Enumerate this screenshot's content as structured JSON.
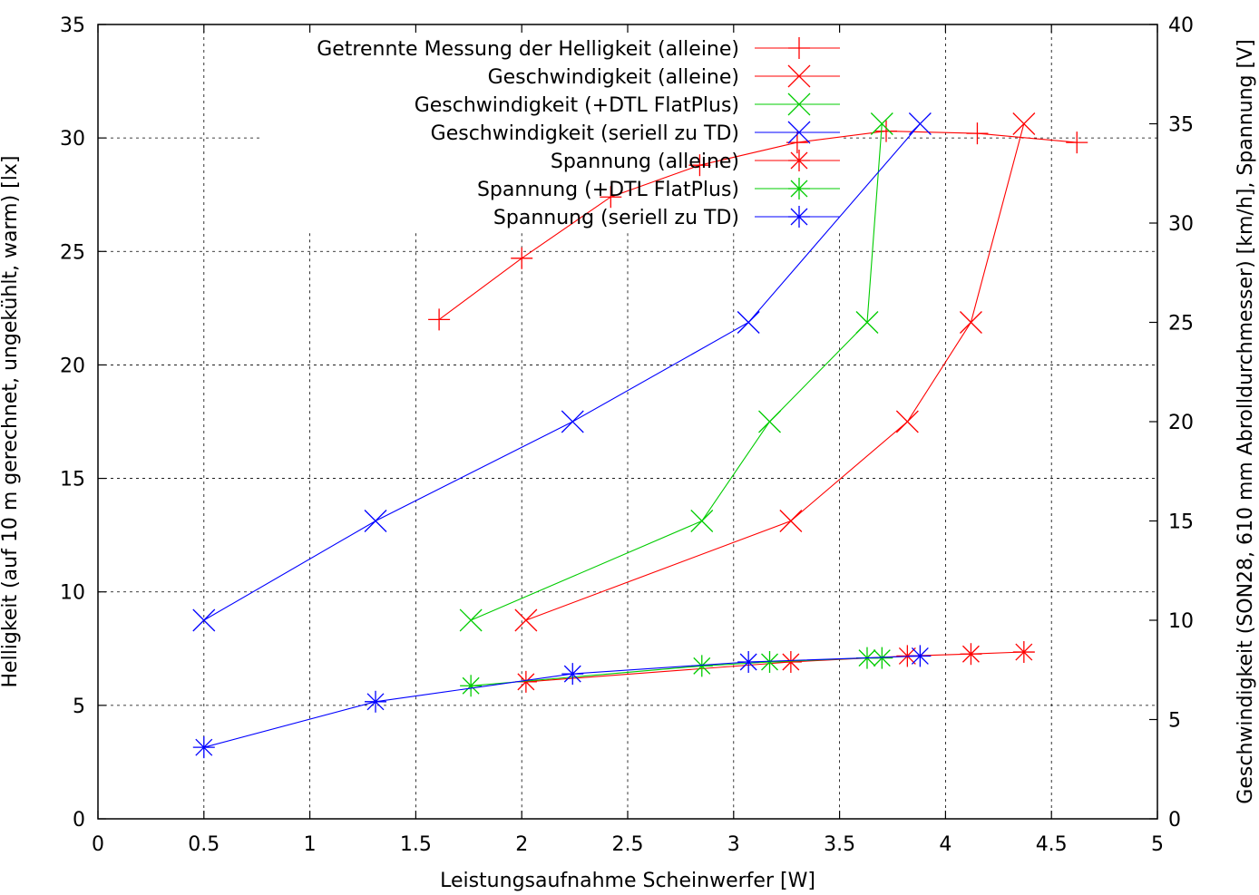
{
  "chart_data": {
    "type": "line",
    "xlabel": "Leistungsaufnahme Scheinwerfer [W]",
    "ylabel": "Helligkeit (auf 10 m gerechnet, ungekühlt, warm) [lx]",
    "y2label": "Geschwindigkeit (SON28, 610 mm Abrolldurchmesser) [km/h], Spannung [V]",
    "xlim": [
      0,
      5
    ],
    "ylim": [
      0,
      35
    ],
    "y2lim": [
      0,
      40
    ],
    "xticks": [
      "0",
      "0.5",
      "1",
      "1.5",
      "2",
      "2.5",
      "3",
      "3.5",
      "4",
      "4.5",
      "5"
    ],
    "yticks": [
      "0",
      "5",
      "10",
      "15",
      "20",
      "25",
      "30",
      "35"
    ],
    "y2ticks": [
      "0",
      "5",
      "10",
      "15",
      "20",
      "25",
      "30",
      "35",
      "40"
    ],
    "grid": true,
    "legend_position": "top-right",
    "series": [
      {
        "name": "Getrennte Messung der Helligkeit (alleine)",
        "axis": "y1",
        "marker": "plus",
        "color": "#ff0000",
        "x": [
          1.61,
          2.0,
          2.42,
          2.84,
          3.3,
          3.72,
          4.15,
          4.62
        ],
        "y": [
          22.0,
          24.7,
          27.4,
          28.8,
          29.8,
          30.3,
          30.2,
          29.8
        ]
      },
      {
        "name": "Geschwindigkeit (alleine)",
        "axis": "y2",
        "marker": "cross",
        "color": "#ff0000",
        "x": [
          2.02,
          3.27,
          3.82,
          4.12,
          4.37
        ],
        "y": [
          10.0,
          15.0,
          20.0,
          25.0,
          35.0
        ]
      },
      {
        "name": "Geschwindigkeit (+DTL FlatPlus)",
        "axis": "y2",
        "marker": "cross",
        "color": "#00cc00",
        "x": [
          1.76,
          2.85,
          3.17,
          3.63,
          3.7
        ],
        "y": [
          10.0,
          15.0,
          20.0,
          25.0,
          35.0
        ]
      },
      {
        "name": "Geschwindigkeit (seriell zu TD)",
        "axis": "y2",
        "marker": "cross",
        "color": "#0000ff",
        "x": [
          0.5,
          1.31,
          2.24,
          3.07,
          3.88
        ],
        "y": [
          10.0,
          15.0,
          20.0,
          25.0,
          35.0
        ]
      },
      {
        "name": "Spannung (alleine)",
        "axis": "y2",
        "marker": "star",
        "color": "#ff0000",
        "x": [
          2.02,
          3.27,
          3.82,
          4.12,
          4.37
        ],
        "y": [
          6.9,
          7.9,
          8.2,
          8.3,
          8.4
        ]
      },
      {
        "name": "Spannung (+DTL FlatPlus)",
        "axis": "y2",
        "marker": "star",
        "color": "#00cc00",
        "x": [
          1.76,
          2.85,
          3.17,
          3.63,
          3.7
        ],
        "y": [
          6.7,
          7.7,
          7.9,
          8.1,
          8.1
        ]
      },
      {
        "name": "Spannung (seriell zu TD)",
        "axis": "y2",
        "marker": "star",
        "color": "#0000ff",
        "x": [
          0.5,
          1.31,
          2.24,
          3.07,
          3.88
        ],
        "y": [
          3.6,
          5.9,
          7.3,
          7.9,
          8.2
        ]
      }
    ]
  }
}
